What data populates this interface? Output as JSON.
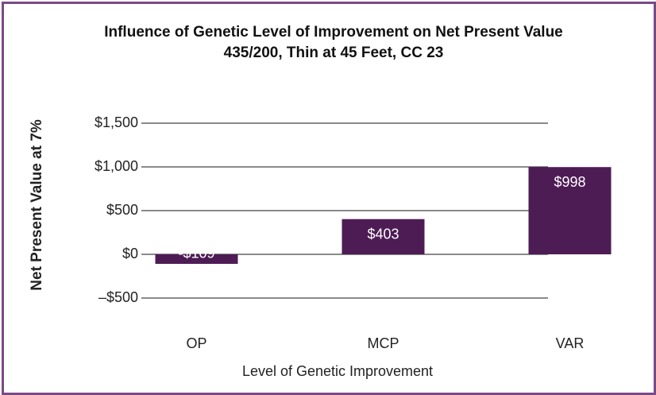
{
  "chart_data": {
    "type": "bar",
    "title": "Influence of Genetic Level of Improvement on Net Present Value 435/200, Thin at 45 Feet, CC 23",
    "x_label": "Level of Genetic Improvement",
    "y_label": "Net Present Value at 7%",
    "categories": [
      "OP",
      "MCP",
      "VAR"
    ],
    "values": [
      -109,
      403,
      998
    ],
    "value_labels": [
      "-$109",
      "$403",
      "$998"
    ],
    "color": "#4e1c55",
    "ylim": [
      -500,
      1500
    ],
    "yticks": [
      {
        "value": -500,
        "label": "–$500"
      },
      {
        "value": 0,
        "label": "$0"
      },
      {
        "value": 500,
        "label": "$500"
      },
      {
        "value": 1000,
        "label": "$1,000"
      },
      {
        "value": 1500,
        "label": "$1,500"
      }
    ],
    "grid": true
  }
}
